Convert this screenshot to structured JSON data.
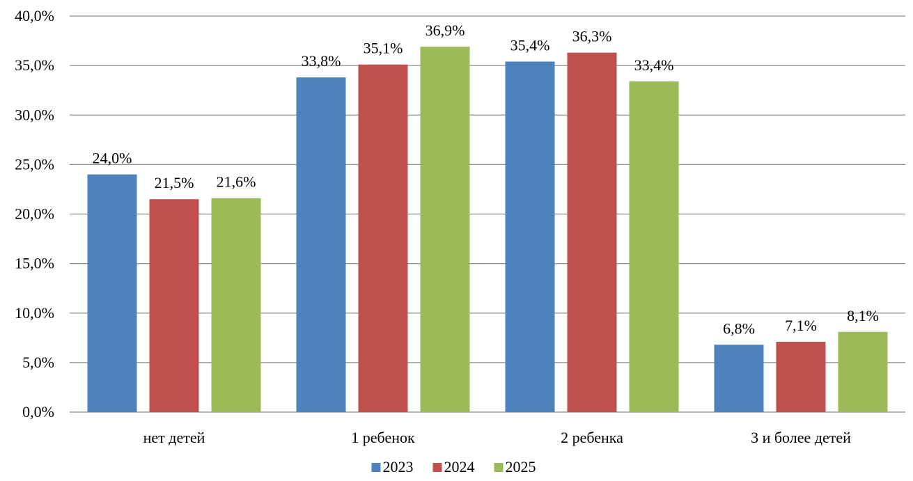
{
  "chart_data": {
    "type": "bar",
    "categories": [
      "нет детей",
      "1 ребенок",
      "2 ребенка",
      "3 и более детей"
    ],
    "series": [
      {
        "name": "2023",
        "color": "#4f81bd",
        "values": [
          24.0,
          33.8,
          35.4,
          6.8
        ],
        "labels": [
          "24,0%",
          "33,8%",
          "35,4%",
          "6,8%"
        ]
      },
      {
        "name": "2024",
        "color": "#c0504d",
        "values": [
          21.5,
          35.1,
          36.3,
          7.1
        ],
        "labels": [
          "21,5%",
          "35,1%",
          "36,3%",
          "7,1%"
        ]
      },
      {
        "name": "2025",
        "color": "#9bbb59",
        "values": [
          21.6,
          36.9,
          33.4,
          8.1
        ],
        "labels": [
          "21,6%",
          "36,9%",
          "33,4%",
          "8,1%"
        ]
      }
    ],
    "ylim": [
      0,
      40
    ],
    "yticks": [
      "0,0%",
      "5,0%",
      "10,0%",
      "15,0%",
      "20,0%",
      "25,0%",
      "30,0%",
      "35,0%",
      "40,0%"
    ],
    "grid": true,
    "legend_position": "bottom-center"
  }
}
